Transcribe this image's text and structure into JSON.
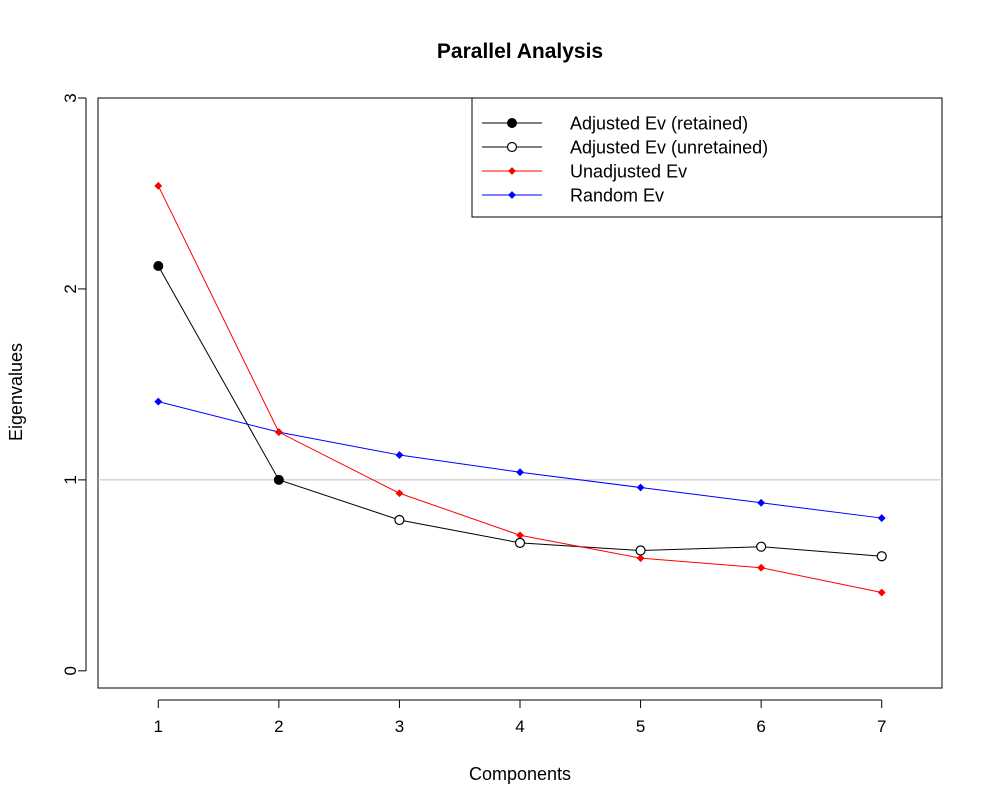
{
  "chart_data": {
    "type": "line",
    "title": "Parallel Analysis",
    "xlabel": "Components",
    "ylabel": "Eigenvalues",
    "x": [
      1,
      2,
      3,
      4,
      5,
      6,
      7
    ],
    "xticks": [
      "1",
      "2",
      "3",
      "4",
      "5",
      "6",
      "7"
    ],
    "yticks": [
      "0",
      "1",
      "2",
      "3"
    ],
    "xlim": [
      0.5,
      7.5
    ],
    "ylim": [
      -0.09,
      3.0
    ],
    "reference_line": {
      "y": 1,
      "color": "#bebebe"
    },
    "retained_count": 2,
    "series": [
      {
        "name": "Adjusted Ev (retained)",
        "color": "#000000",
        "marker": "filled-circle",
        "x": [
          1,
          2
        ],
        "values": [
          2.12,
          1.0
        ]
      },
      {
        "name": "Adjusted Ev (unretained)",
        "color": "#000000",
        "marker": "open-circle",
        "x": [
          3,
          4,
          5,
          6,
          7
        ],
        "values": [
          0.79,
          0.67,
          0.63,
          0.65,
          0.6
        ]
      },
      {
        "name": "Unadjusted Ev",
        "color": "#ff0000",
        "marker": "small-diamond",
        "x": [
          1,
          2,
          3,
          4,
          5,
          6,
          7
        ],
        "values": [
          2.54,
          1.25,
          0.93,
          0.71,
          0.59,
          0.54,
          0.41
        ]
      },
      {
        "name": "Random Ev",
        "color": "#0000ff",
        "marker": "small-diamond",
        "x": [
          1,
          2,
          3,
          4,
          5,
          6,
          7
        ],
        "values": [
          1.41,
          1.25,
          1.13,
          1.04,
          0.96,
          0.88,
          0.8
        ]
      }
    ],
    "legend": {
      "position": "top-right"
    },
    "grid": false
  }
}
